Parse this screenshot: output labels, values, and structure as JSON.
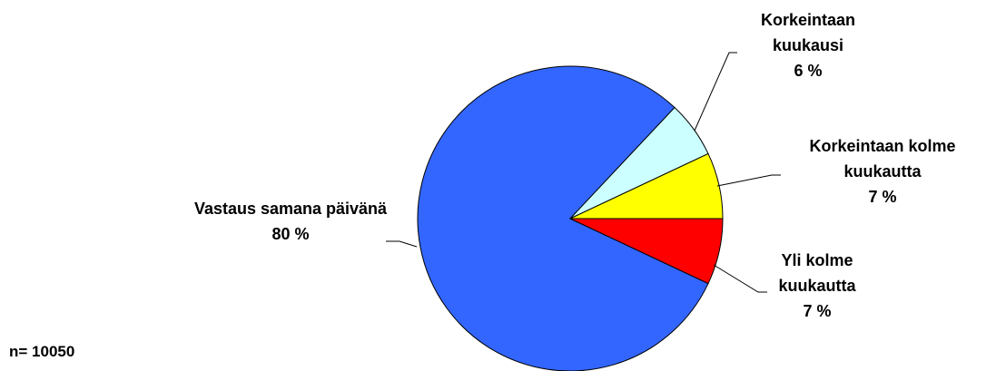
{
  "chart_data": {
    "type": "pie",
    "categories": [
      "Vastaus samana päivänä",
      "Korkeintaan kuukausi",
      "Korkeintaan kolme kuukautta",
      "Yli kolme kuukautta"
    ],
    "values": [
      80,
      6,
      7,
      7
    ],
    "value_labels": [
      "80 %",
      "6 %",
      "7 %",
      "7 %"
    ],
    "colors": [
      "#3366ff",
      "#ccffff",
      "#ffff00",
      "#ff0000"
    ],
    "annotation": "n= 10050"
  }
}
